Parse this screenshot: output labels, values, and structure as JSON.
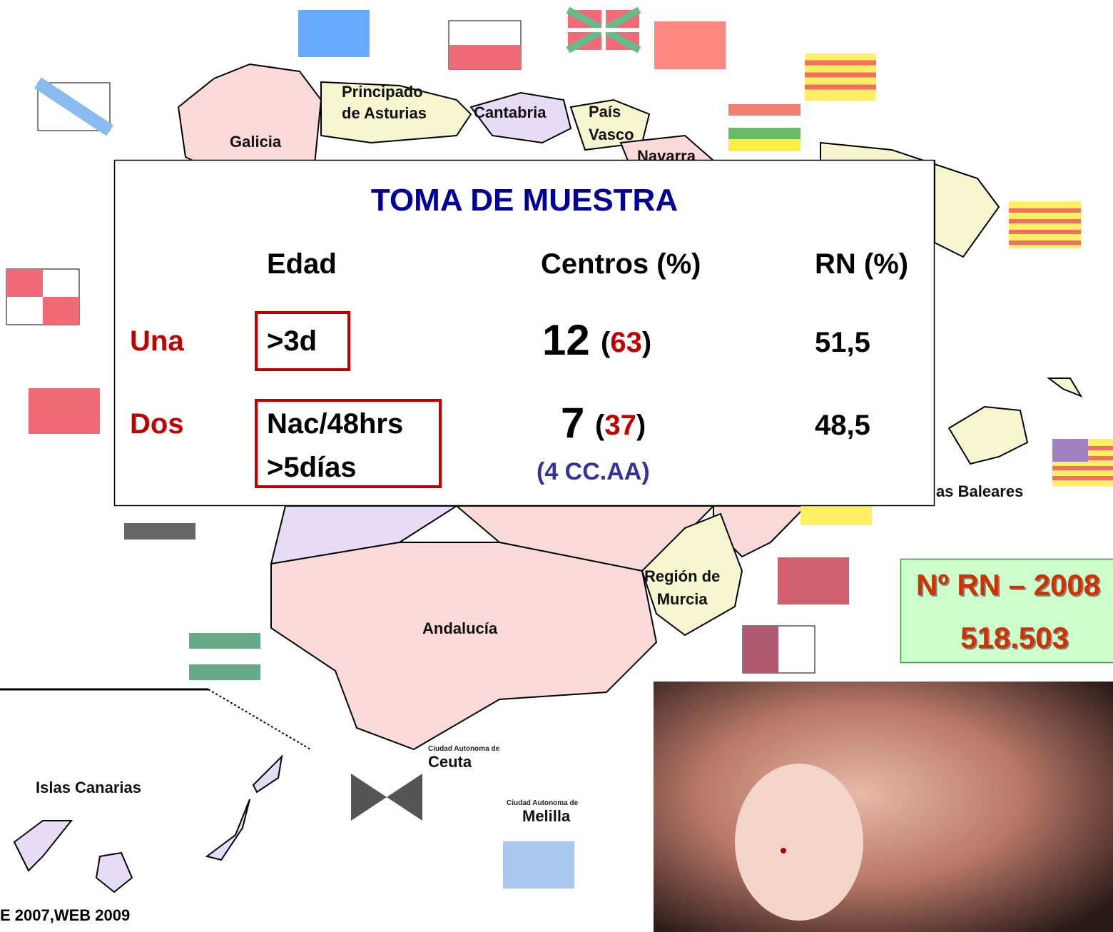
{
  "map_labels": {
    "asturias": [
      "Principado",
      "de Asturias"
    ],
    "cantabria": "Cantabria",
    "pais_vasco": [
      "País",
      "Vasco"
    ],
    "galicia": "Galicia",
    "navarra": "Navarra",
    "murcia": [
      "Región de",
      "Murcia"
    ],
    "andalucia": "Andalucía",
    "canarias": "Islas Canarias",
    "baleares": "as Baleares",
    "ceuta": [
      "Ciudad Autonoma de",
      "Ceuta"
    ],
    "melilla": [
      "Ciudad Autonoma de",
      "Melilla"
    ]
  },
  "table": {
    "title": "TOMA DE MUESTRA",
    "headers": [
      "Edad",
      "Centros (%)",
      "RN (%)"
    ],
    "rows": [
      {
        "label": "Una",
        "edad": [
          ">3d"
        ],
        "centros": "12",
        "centros_pct": "(63)",
        "rn": "51,5"
      },
      {
        "label": "Dos",
        "edad": [
          "Nac/48hrs",
          ">5días"
        ],
        "centros": "7",
        "centros_pct": "(37)",
        "centros_note": "(4 CC.AA)",
        "rn": "48,5"
      }
    ]
  },
  "births_box": {
    "title": "Nº RN – 2008",
    "value": "518.503"
  },
  "source": "E 2007,WEB 2009"
}
